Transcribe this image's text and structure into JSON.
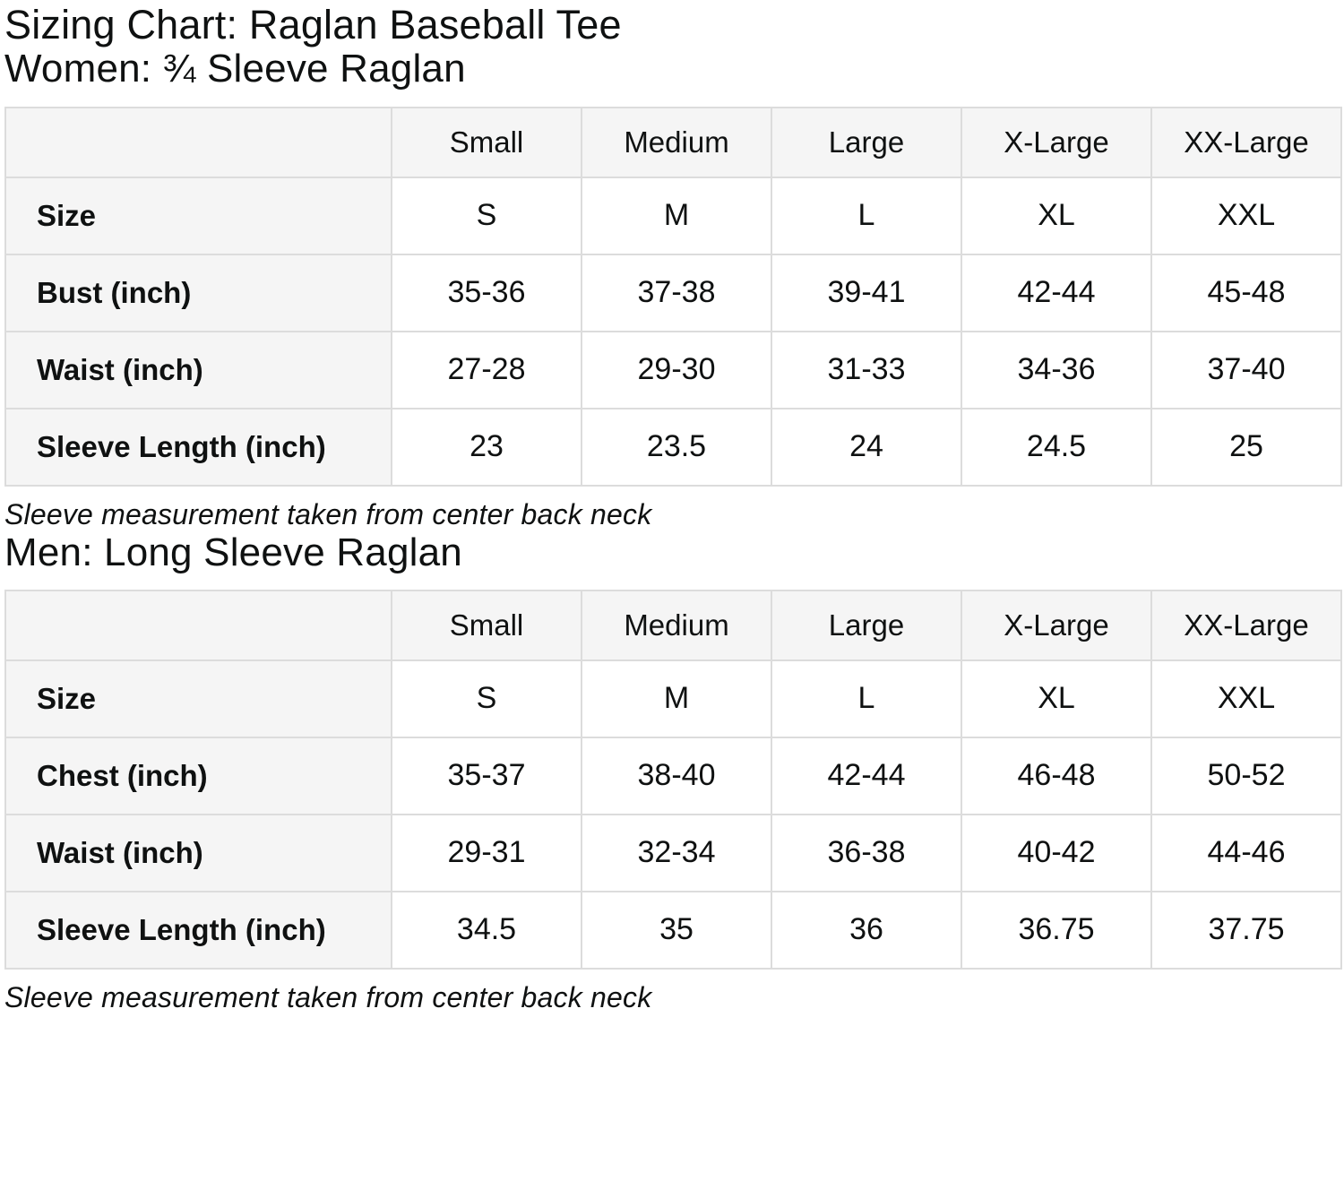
{
  "page": {
    "title": "Sizing Chart: Raglan Baseball Tee"
  },
  "colors": {
    "cell_gray_bg": "#f5f5f5",
    "cell_border": "#dcdcdc",
    "text": "#0f1111",
    "page_bg": "#ffffff"
  },
  "tables": [
    {
      "section_heading": "Women: ¾ Sleeve Raglan",
      "columns": [
        "Small",
        "Medium",
        "Large",
        "X-Large",
        "XX-Large"
      ],
      "rows": [
        {
          "label": "Size",
          "values": [
            "S",
            "M",
            "L",
            "XL",
            "XXL"
          ]
        },
        {
          "label": "Bust (inch)",
          "values": [
            "35-36",
            "37-38",
            "39-41",
            "42-44",
            "45-48"
          ]
        },
        {
          "label": "Waist (inch)",
          "values": [
            "27-28",
            "29-30",
            "31-33",
            "34-36",
            "37-40"
          ]
        },
        {
          "label": "Sleeve Length (inch)",
          "values": [
            "23",
            "23.5",
            "24",
            "24.5",
            "25"
          ]
        }
      ],
      "note": "Sleeve measurement taken from center back neck"
    },
    {
      "section_heading": "Men: Long Sleeve Raglan",
      "columns": [
        "Small",
        "Medium",
        "Large",
        "X-Large",
        "XX-Large"
      ],
      "rows": [
        {
          "label": "Size",
          "values": [
            "S",
            "M",
            "L",
            "XL",
            "XXL"
          ]
        },
        {
          "label": "Chest (inch)",
          "values": [
            "35-37",
            "38-40",
            "42-44",
            "46-48",
            "50-52"
          ]
        },
        {
          "label": "Waist (inch)",
          "values": [
            "29-31",
            "32-34",
            "36-38",
            "40-42",
            "44-46"
          ]
        },
        {
          "label": "Sleeve Length (inch)",
          "values": [
            "34.5",
            "35",
            "36",
            "36.75",
            "37.75"
          ]
        }
      ],
      "note": "Sleeve measurement taken from center back neck"
    }
  ]
}
